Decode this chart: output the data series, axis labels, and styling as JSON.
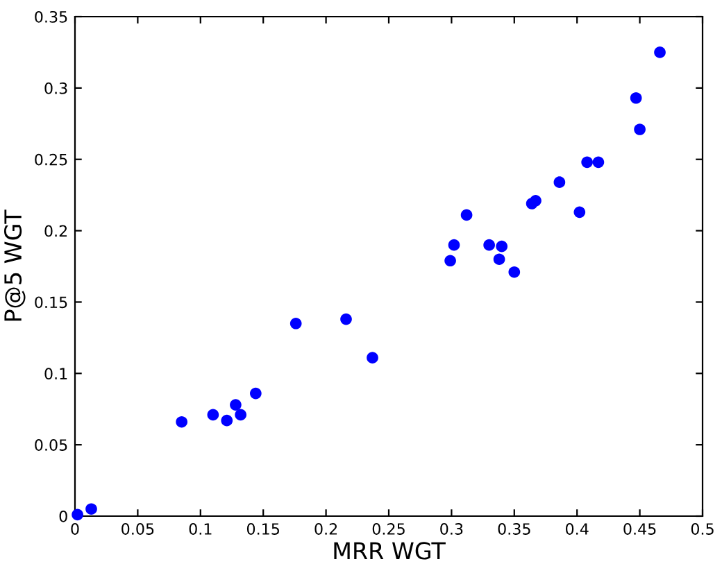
{
  "chart_data": {
    "type": "scatter",
    "xlabel": "MRR WGT",
    "ylabel": "P@5 WGT",
    "color": "#0000ff",
    "marker": "circle",
    "grid": false,
    "legend": false,
    "x": [
      0.002,
      0.013,
      0.085,
      0.11,
      0.121,
      0.128,
      0.132,
      0.144,
      0.176,
      0.216,
      0.237,
      0.299,
      0.302,
      0.312,
      0.33,
      0.338,
      0.34,
      0.35,
      0.364,
      0.367,
      0.386,
      0.402,
      0.408,
      0.417,
      0.447,
      0.45,
      0.466
    ],
    "values": [
      0.001,
      0.005,
      0.066,
      0.071,
      0.067,
      0.078,
      0.071,
      0.086,
      0.135,
      0.138,
      0.111,
      0.179,
      0.19,
      0.211,
      0.19,
      0.18,
      0.189,
      0.171,
      0.219,
      0.221,
      0.234,
      0.213,
      0.248,
      0.248,
      0.293,
      0.271,
      0.325
    ],
    "xlim": [
      0,
      0.5
    ],
    "xticks": [
      0,
      0.05,
      0.1,
      0.15,
      0.2,
      0.25,
      0.3,
      0.35,
      0.4,
      0.45,
      0.5
    ],
    "ylim": [
      0,
      0.35
    ],
    "yticks": [
      0,
      0.05,
      0.1,
      0.15,
      0.2,
      0.25,
      0.3,
      0.35
    ]
  }
}
